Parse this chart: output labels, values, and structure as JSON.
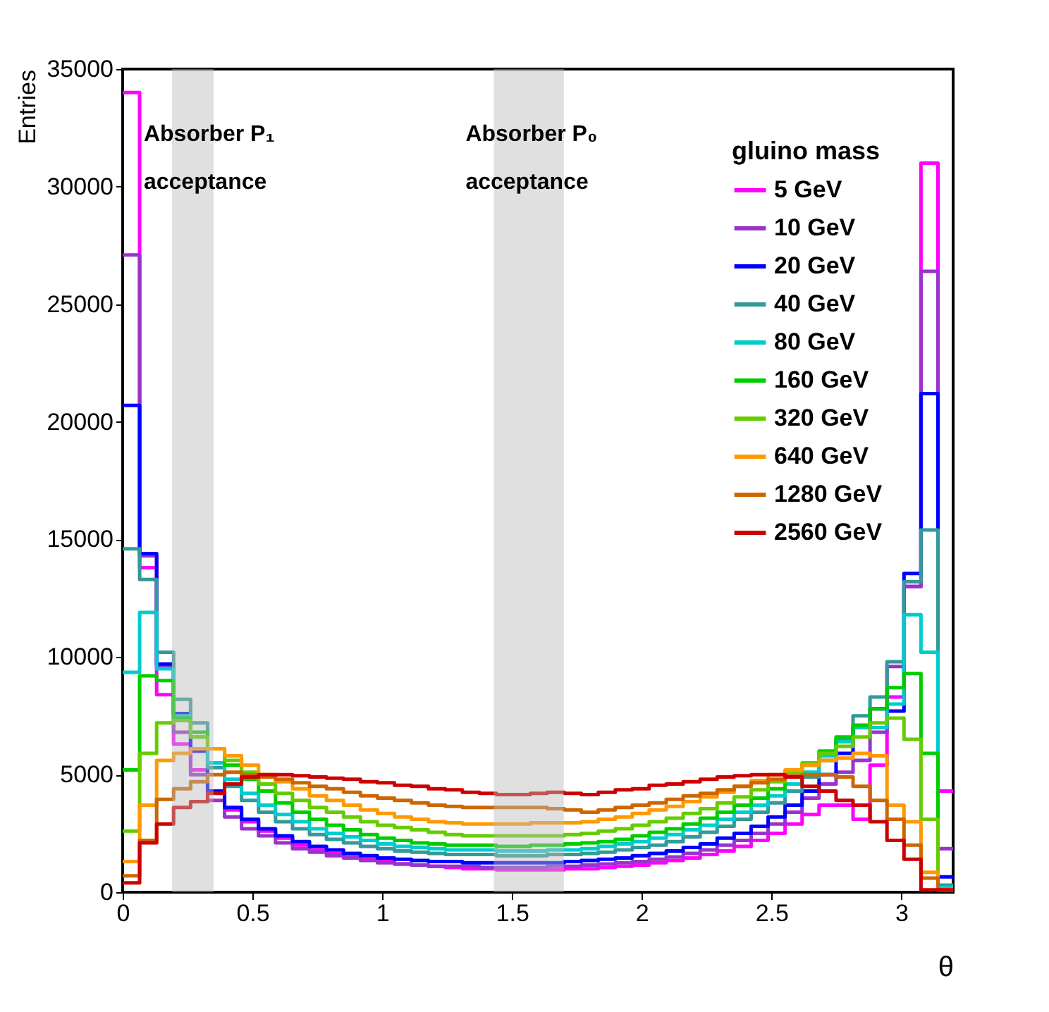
{
  "chart_data": {
    "type": "histogram",
    "xlabel": "θ",
    "ylabel": "Entries",
    "legend_title": "gluino mass",
    "legend": "top right",
    "grid": false,
    "xlim": [
      0,
      3.2
    ],
    "xticks": [
      0,
      0.5,
      1,
      1.5,
      2,
      2.5,
      3
    ],
    "ylim": [
      0,
      35000
    ],
    "yticks": [
      0,
      5000,
      10000,
      15000,
      20000,
      25000,
      30000,
      35000
    ],
    "bins": [
      0,
      0.0654,
      0.1309,
      0.1963,
      0.2618,
      0.3272,
      0.3927,
      0.4581,
      0.5236,
      0.589,
      0.6545,
      0.7199,
      0.7854,
      0.8508,
      0.9163,
      0.9817,
      1.0472,
      1.1126,
      1.1781,
      1.2435,
      1.309,
      1.3744,
      1.4399,
      1.5053,
      1.5708,
      1.6362,
      1.7017,
      1.7671,
      1.8326,
      1.898,
      1.9635,
      2.0289,
      2.0944,
      2.1598,
      2.2253,
      2.2907,
      2.3562,
      2.4216,
      2.4871,
      2.5525,
      2.618,
      2.6834,
      2.7489,
      2.8143,
      2.8798,
      2.9452,
      3.0107,
      3.0761,
      3.1416,
      3.2
    ],
    "bands": [
      {
        "axis": "x",
        "from": 0.19,
        "to": 0.35,
        "label": "Absorber P₁ acceptance",
        "color": "#bbbbbb"
      },
      {
        "axis": "x",
        "from": 1.43,
        "to": 1.7,
        "label": "Absorber P₀ acceptance",
        "color": "#bbbbbb"
      }
    ],
    "series": [
      {
        "name": "5 GeV",
        "color": "#ff00ff",
        "values": [
          34000,
          13800,
          8400,
          6300,
          5200,
          4300,
          3500,
          3000,
          2600,
          2300,
          2000,
          1800,
          1650,
          1500,
          1400,
          1300,
          1200,
          1150,
          1100,
          1050,
          1000,
          1000,
          950,
          950,
          950,
          950,
          1000,
          1000,
          1050,
          1100,
          1150,
          1250,
          1350,
          1450,
          1600,
          1750,
          1950,
          2200,
          2500,
          2900,
          3300,
          3700,
          3700,
          3100,
          5400,
          8300,
          13000,
          31000,
          4300
        ]
      },
      {
        "name": "10 GeV",
        "color": "#9933cc",
        "values": [
          27100,
          14300,
          9600,
          6800,
          5000,
          3900,
          3200,
          2700,
          2400,
          2100,
          1850,
          1700,
          1550,
          1450,
          1350,
          1250,
          1200,
          1150,
          1100,
          1100,
          1100,
          1050,
          1050,
          1050,
          1050,
          1100,
          1100,
          1150,
          1200,
          1250,
          1300,
          1400,
          1500,
          1650,
          1800,
          2000,
          2200,
          2500,
          2900,
          3400,
          4000,
          4600,
          5100,
          5600,
          6800,
          9600,
          13000,
          26400,
          1850
        ]
      },
      {
        "name": "20 GeV",
        "color": "#0000ff",
        "values": [
          20700,
          14400,
          9700,
          7600,
          6000,
          4300,
          3600,
          3100,
          2700,
          2400,
          2150,
          1950,
          1800,
          1650,
          1550,
          1450,
          1400,
          1350,
          1300,
          1300,
          1250,
          1250,
          1250,
          1250,
          1250,
          1250,
          1300,
          1350,
          1400,
          1450,
          1550,
          1650,
          1750,
          1900,
          2050,
          2300,
          2500,
          2800,
          3200,
          3700,
          4300,
          5000,
          5900,
          7000,
          7800,
          7700,
          13550,
          21200,
          650
        ]
      },
      {
        "name": "40 GeV",
        "color": "#339999",
        "values": [
          14600,
          13300,
          10200,
          8200,
          7200,
          5300,
          4500,
          3900,
          3400,
          3000,
          2700,
          2450,
          2250,
          2100,
          1950,
          1850,
          1750,
          1700,
          1650,
          1600,
          1600,
          1600,
          1550,
          1550,
          1550,
          1600,
          1600,
          1650,
          1700,
          1800,
          1900,
          2000,
          2150,
          2350,
          2550,
          2800,
          3100,
          3400,
          3800,
          4300,
          4900,
          5600,
          6500,
          7500,
          8300,
          9800,
          13200,
          15400,
          300
        ]
      },
      {
        "name": "80 GeV",
        "color": "#00cccc",
        "values": [
          9350,
          11900,
          9500,
          7500,
          6600,
          5500,
          4800,
          4200,
          3700,
          3300,
          3000,
          2700,
          2500,
          2350,
          2200,
          2050,
          1950,
          1900,
          1850,
          1800,
          1800,
          1800,
          1750,
          1750,
          1750,
          1800,
          1800,
          1850,
          1950,
          2050,
          2150,
          2300,
          2450,
          2650,
          2850,
          3100,
          3400,
          3700,
          4100,
          4600,
          5100,
          5800,
          6400,
          7000,
          7000,
          8000,
          11800,
          10200,
          200
        ]
      },
      {
        "name": "160 GeV",
        "color": "#00cc00",
        "values": [
          5200,
          9200,
          9000,
          7400,
          6800,
          6100,
          5400,
          4800,
          4300,
          3800,
          3400,
          3100,
          2850,
          2650,
          2450,
          2300,
          2200,
          2100,
          2050,
          2000,
          2000,
          2000,
          1950,
          1950,
          2000,
          2000,
          2050,
          2100,
          2150,
          2250,
          2400,
          2550,
          2700,
          2900,
          3150,
          3400,
          3700,
          4000,
          4400,
          4900,
          5400,
          6000,
          6600,
          7100,
          7800,
          8700,
          9300,
          5900,
          100
        ]
      },
      {
        "name": "320 GeV",
        "color": "#66cc00",
        "values": [
          2600,
          5900,
          7200,
          7300,
          6600,
          6100,
          5600,
          5100,
          4600,
          4200,
          3900,
          3600,
          3400,
          3200,
          3000,
          2850,
          2750,
          2650,
          2550,
          2450,
          2400,
          2400,
          2400,
          2400,
          2400,
          2400,
          2450,
          2500,
          2600,
          2700,
          2850,
          3000,
          3150,
          3350,
          3550,
          3800,
          4050,
          4350,
          4700,
          5100,
          5500,
          5900,
          6200,
          6600,
          7200,
          7400,
          6500,
          3100,
          100
        ]
      },
      {
        "name": "640 GeV",
        "color": "#ff9900",
        "values": [
          1300,
          3700,
          5600,
          5900,
          6100,
          6100,
          5800,
          5400,
          5000,
          4700,
          4400,
          4100,
          3900,
          3700,
          3500,
          3350,
          3200,
          3100,
          3000,
          2950,
          2900,
          2900,
          2900,
          2900,
          2950,
          2950,
          2950,
          3000,
          3100,
          3200,
          3350,
          3500,
          3650,
          3850,
          4050,
          4250,
          4500,
          4750,
          5000,
          5200,
          5400,
          5600,
          5700,
          5900,
          5800,
          3700,
          3000,
          850,
          100
        ]
      },
      {
        "name": "1280 GeV",
        "color": "#cc6600",
        "values": [
          700,
          2200,
          3950,
          4400,
          4700,
          5000,
          5100,
          5000,
          4900,
          4800,
          4650,
          4500,
          4400,
          4250,
          4100,
          4000,
          3900,
          3800,
          3700,
          3650,
          3600,
          3600,
          3600,
          3600,
          3600,
          3550,
          3500,
          3400,
          3500,
          3600,
          3700,
          3800,
          3950,
          4100,
          4200,
          4350,
          4500,
          4650,
          4800,
          4950,
          5000,
          5000,
          4900,
          4500,
          3900,
          3100,
          2000,
          600,
          100
        ]
      },
      {
        "name": "2560 GeV",
        "color": "#cc0000",
        "values": [
          400,
          2100,
          2900,
          3600,
          3850,
          4200,
          4600,
          4900,
          5000,
          5000,
          4950,
          4900,
          4850,
          4800,
          4700,
          4650,
          4550,
          4500,
          4400,
          4350,
          4250,
          4200,
          4150,
          4150,
          4200,
          4250,
          4200,
          4150,
          4250,
          4350,
          4400,
          4550,
          4600,
          4700,
          4800,
          4900,
          4950,
          5000,
          5000,
          4900,
          4500,
          4300,
          3900,
          3700,
          3000,
          2200,
          1400,
          100,
          100
        ]
      }
    ]
  }
}
